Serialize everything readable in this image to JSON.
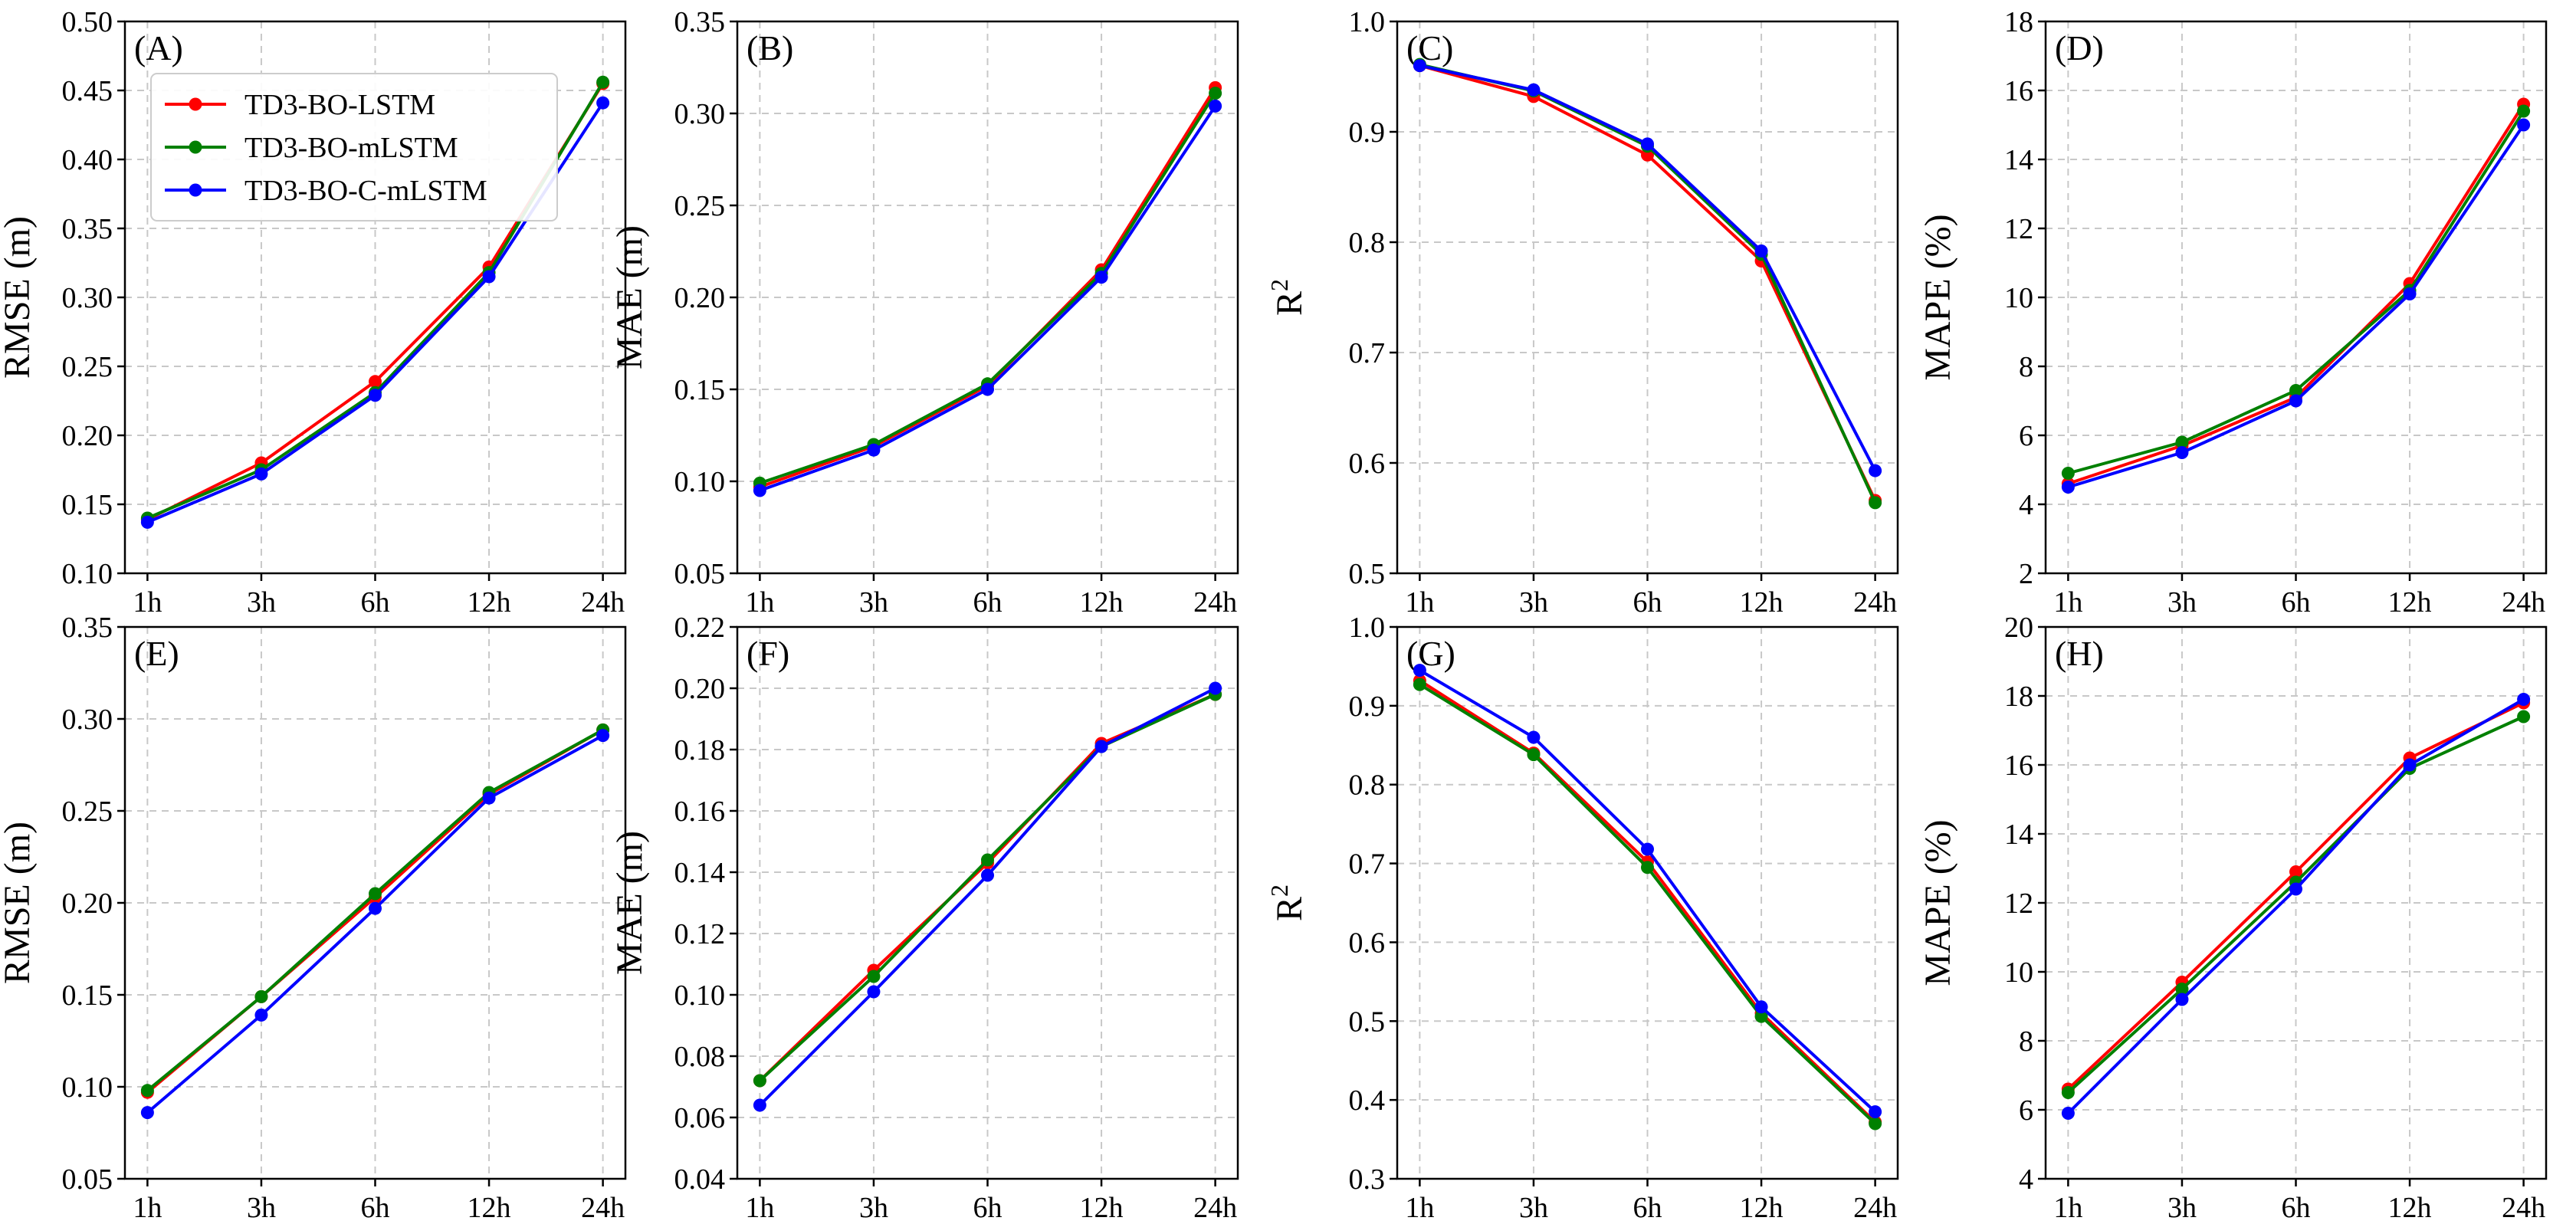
{
  "colors": {
    "TD3-BO-LSTM": "#ff0000",
    "TD3-BO-mLSTM": "#008000",
    "TD3-BO-C-mLSTM": "#0000ff"
  },
  "legend": {
    "location": "upper-left of panel A",
    "entries": [
      "TD3-BO-LSTM",
      "TD3-BO-mLSTM",
      "TD3-BO-C-mLSTM"
    ]
  },
  "chart_data": [
    {
      "type": "line",
      "panel": "(A)",
      "ylabel": "RMSE (m)",
      "ylabel_sup": "",
      "categories": [
        "1h",
        "3h",
        "6h",
        "12h",
        "24h"
      ],
      "ylim": [
        0.1,
        0.5
      ],
      "yticks": [
        "0.10",
        "0.15",
        "0.20",
        "0.25",
        "0.30",
        "0.35",
        "0.40",
        "0.45",
        "0.50"
      ],
      "series": [
        {
          "name": "TD3-BO-LSTM",
          "values": [
            0.139,
            0.18,
            0.239,
            0.322,
            0.455
          ]
        },
        {
          "name": "TD3-BO-mLSTM",
          "values": [
            0.14,
            0.175,
            0.231,
            0.318,
            0.456
          ]
        },
        {
          "name": "TD3-BO-C-mLSTM",
          "values": [
            0.137,
            0.172,
            0.229,
            0.315,
            0.441
          ]
        }
      ]
    },
    {
      "type": "line",
      "panel": "(B)",
      "ylabel": "MAE (m)",
      "ylabel_sup": "",
      "categories": [
        "1h",
        "3h",
        "6h",
        "12h",
        "24h"
      ],
      "ylim": [
        0.05,
        0.35
      ],
      "yticks": [
        "0.05",
        "0.10",
        "0.15",
        "0.20",
        "0.25",
        "0.30",
        "0.35"
      ],
      "series": [
        {
          "name": "TD3-BO-LSTM",
          "values": [
            0.097,
            0.119,
            0.152,
            0.215,
            0.314
          ]
        },
        {
          "name": "TD3-BO-mLSTM",
          "values": [
            0.099,
            0.12,
            0.153,
            0.213,
            0.311
          ]
        },
        {
          "name": "TD3-BO-C-mLSTM",
          "values": [
            0.095,
            0.117,
            0.15,
            0.211,
            0.304
          ]
        }
      ]
    },
    {
      "type": "line",
      "panel": "(C)",
      "ylabel": "R",
      "ylabel_sup": "2",
      "categories": [
        "1h",
        "3h",
        "6h",
        "12h",
        "24h"
      ],
      "ylim": [
        0.5,
        1.0
      ],
      "yticks": [
        "0.5",
        "0.6",
        "0.7",
        "0.8",
        "0.9",
        "1.0"
      ],
      "series": [
        {
          "name": "TD3-BO-LSTM",
          "values": [
            0.96,
            0.932,
            0.879,
            0.783,
            0.566
          ]
        },
        {
          "name": "TD3-BO-mLSTM",
          "values": [
            0.961,
            0.937,
            0.887,
            0.789,
            0.564
          ]
        },
        {
          "name": "TD3-BO-C-mLSTM",
          "values": [
            0.96,
            0.938,
            0.889,
            0.792,
            0.593
          ]
        }
      ]
    },
    {
      "type": "line",
      "panel": "(D)",
      "ylabel": "MAPE (%)",
      "ylabel_sup": "",
      "categories": [
        "1h",
        "3h",
        "6h",
        "12h",
        "24h"
      ],
      "ylim": [
        2,
        18
      ],
      "yticks": [
        "2",
        "4",
        "6",
        "8",
        "10",
        "12",
        "14",
        "16",
        "18"
      ],
      "series": [
        {
          "name": "TD3-BO-LSTM",
          "values": [
            4.6,
            5.7,
            7.1,
            10.4,
            15.6
          ]
        },
        {
          "name": "TD3-BO-mLSTM",
          "values": [
            4.9,
            5.8,
            7.3,
            10.2,
            15.4
          ]
        },
        {
          "name": "TD3-BO-C-mLSTM",
          "values": [
            4.5,
            5.5,
            7.0,
            10.1,
            15.0
          ]
        }
      ]
    },
    {
      "type": "line",
      "panel": "(E)",
      "ylabel": "RMSE (m)",
      "ylabel_sup": "",
      "categories": [
        "1h",
        "3h",
        "6h",
        "12h",
        "24h"
      ],
      "ylim": [
        0.05,
        0.35
      ],
      "yticks": [
        "0.05",
        "0.10",
        "0.15",
        "0.20",
        "0.25",
        "0.30",
        "0.35"
      ],
      "series": [
        {
          "name": "TD3-BO-LSTM",
          "values": [
            0.097,
            0.149,
            0.203,
            0.259,
            0.294
          ]
        },
        {
          "name": "TD3-BO-mLSTM",
          "values": [
            0.098,
            0.149,
            0.205,
            0.26,
            0.294
          ]
        },
        {
          "name": "TD3-BO-C-mLSTM",
          "values": [
            0.086,
            0.139,
            0.197,
            0.257,
            0.291
          ]
        }
      ]
    },
    {
      "type": "line",
      "panel": "(F)",
      "ylabel": "MAE (m)",
      "ylabel_sup": "",
      "categories": [
        "1h",
        "3h",
        "6h",
        "12h",
        "24h"
      ],
      "ylim": [
        0.04,
        0.22
      ],
      "yticks": [
        "0.04",
        "0.06",
        "0.08",
        "0.10",
        "0.12",
        "0.14",
        "0.16",
        "0.18",
        "0.20",
        "0.22"
      ],
      "series": [
        {
          "name": "TD3-BO-LSTM",
          "values": [
            0.072,
            0.108,
            0.143,
            0.182,
            0.198
          ]
        },
        {
          "name": "TD3-BO-mLSTM",
          "values": [
            0.072,
            0.106,
            0.144,
            0.181,
            0.198
          ]
        },
        {
          "name": "TD3-BO-C-mLSTM",
          "values": [
            0.064,
            0.101,
            0.139,
            0.181,
            0.2
          ]
        }
      ]
    },
    {
      "type": "line",
      "panel": "(G)",
      "ylabel": "R",
      "ylabel_sup": "2",
      "categories": [
        "1h",
        "3h",
        "6h",
        "12h",
        "24h"
      ],
      "ylim": [
        0.3,
        1.0
      ],
      "yticks": [
        "0.3",
        "0.4",
        "0.5",
        "0.6",
        "0.7",
        "0.8",
        "0.9",
        "1.0"
      ],
      "series": [
        {
          "name": "TD3-BO-LSTM",
          "values": [
            0.932,
            0.84,
            0.702,
            0.51,
            0.372
          ]
        },
        {
          "name": "TD3-BO-mLSTM",
          "values": [
            0.927,
            0.838,
            0.695,
            0.506,
            0.37
          ]
        },
        {
          "name": "TD3-BO-C-mLSTM",
          "values": [
            0.945,
            0.86,
            0.718,
            0.518,
            0.385
          ]
        }
      ]
    },
    {
      "type": "line",
      "panel": "(H)",
      "ylabel": "MAPE (%)",
      "ylabel_sup": "",
      "categories": [
        "1h",
        "3h",
        "6h",
        "12h",
        "24h"
      ],
      "ylim": [
        4,
        20
      ],
      "yticks": [
        "4",
        "6",
        "8",
        "10",
        "12",
        "14",
        "16",
        "18",
        "20"
      ],
      "series": [
        {
          "name": "TD3-BO-LSTM",
          "values": [
            6.6,
            9.7,
            12.9,
            16.2,
            17.8
          ]
        },
        {
          "name": "TD3-BO-mLSTM",
          "values": [
            6.5,
            9.5,
            12.6,
            15.9,
            17.4
          ]
        },
        {
          "name": "TD3-BO-C-mLSTM",
          "values": [
            5.9,
            9.2,
            12.4,
            16.0,
            17.9
          ]
        }
      ]
    }
  ]
}
